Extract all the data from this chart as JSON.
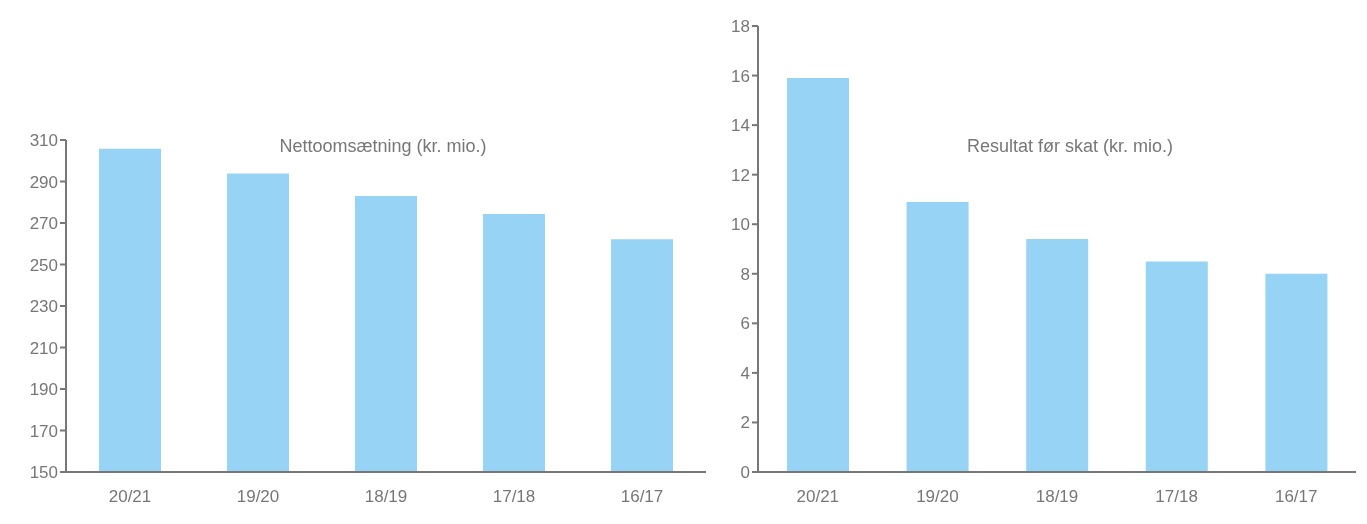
{
  "chart_data": [
    {
      "type": "bar",
      "title": "Nettoomsætning (kr. mio.)",
      "categories": [
        "20/21",
        "19/20",
        "18/19",
        "17/18",
        "16/17"
      ],
      "values": [
        305.8,
        293.8,
        283,
        274.3,
        262.2
      ],
      "color": "#97d3f4",
      "ylim": [
        150,
        310
      ],
      "yticks": [
        150,
        170,
        190,
        210,
        230,
        250,
        270,
        290,
        310
      ]
    },
    {
      "type": "bar",
      "title": "Resultat før skat (kr. mio.)",
      "categories": [
        "20/21",
        "19/20",
        "18/19",
        "17/18",
        "16/17"
      ],
      "values": [
        15.9,
        10.9,
        9.4,
        8.5,
        8.0
      ],
      "color": "#97d3f4",
      "ylim": [
        0,
        18
      ],
      "yticks": [
        0,
        2,
        4,
        6,
        8,
        10,
        12,
        14,
        16,
        18
      ]
    }
  ]
}
